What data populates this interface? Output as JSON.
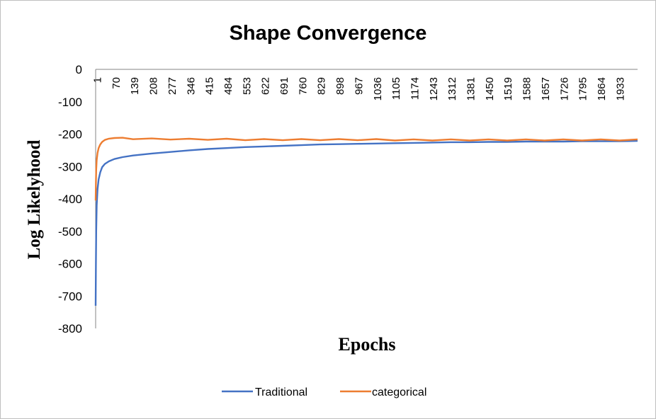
{
  "chart_data": {
    "type": "line",
    "title": "Shape Convergence",
    "xlabel": "Epochs",
    "ylabel": "Log Likelyhood",
    "ylim": [
      -800,
      0
    ],
    "yticks": [
      "0",
      "-100",
      "-200",
      "-300",
      "-400",
      "-500",
      "-600",
      "-700",
      "-800"
    ],
    "xlim": [
      1,
      2000
    ],
    "xticks": [
      "1",
      "70",
      "139",
      "208",
      "277",
      "346",
      "415",
      "484",
      "553",
      "622",
      "691",
      "760",
      "829",
      "898",
      "967",
      "1036",
      "1105",
      "1174",
      "1243",
      "1312",
      "1381",
      "1450",
      "1519",
      "1588",
      "1657",
      "1726",
      "1795",
      "1864",
      "1933"
    ],
    "grid": false,
    "legend_position": "bottom",
    "series": [
      {
        "name": "Traditional",
        "color": "#4472C4",
        "x": [
          1,
          2,
          3,
          5,
          8,
          12,
          18,
          25,
          35,
          50,
          70,
          100,
          139,
          208,
          277,
          346,
          415,
          484,
          553,
          622,
          691,
          760,
          829,
          898,
          967,
          1036,
          1105,
          1174,
          1243,
          1312,
          1381,
          1450,
          1519,
          1588,
          1657,
          1726,
          1795,
          1864,
          1933,
          2000
        ],
        "y": [
          -730,
          -600,
          -500,
          -420,
          -370,
          -340,
          -318,
          -302,
          -292,
          -284,
          -277,
          -271,
          -266,
          -260,
          -255,
          -250,
          -246,
          -243,
          -240,
          -238,
          -236,
          -234,
          -232,
          -231,
          -230,
          -229,
          -228,
          -227,
          -226,
          -225,
          -225,
          -224,
          -224,
          -223,
          -223,
          -223,
          -222,
          -222,
          -222,
          -221
        ]
      },
      {
        "name": "categorical",
        "color": "#ED7D31",
        "x": [
          1,
          2,
          3,
          5,
          8,
          12,
          18,
          25,
          35,
          50,
          70,
          100,
          139,
          208,
          277,
          346,
          415,
          484,
          553,
          622,
          691,
          760,
          829,
          898,
          967,
          1036,
          1105,
          1174,
          1243,
          1312,
          1381,
          1450,
          1519,
          1588,
          1657,
          1726,
          1795,
          1864,
          1933,
          2000
        ],
        "y": [
          -405,
          -350,
          -310,
          -280,
          -258,
          -243,
          -232,
          -224,
          -218,
          -214,
          -212,
          -213,
          -214,
          -215,
          -215,
          -216,
          -216,
          -216,
          -217,
          -217,
          -217,
          -217,
          -217,
          -217,
          -217,
          -217,
          -218,
          -218,
          -218,
          -218,
          -218,
          -218,
          -218,
          -218,
          -218,
          -218,
          -218,
          -218,
          -218,
          -218
        ]
      }
    ]
  }
}
